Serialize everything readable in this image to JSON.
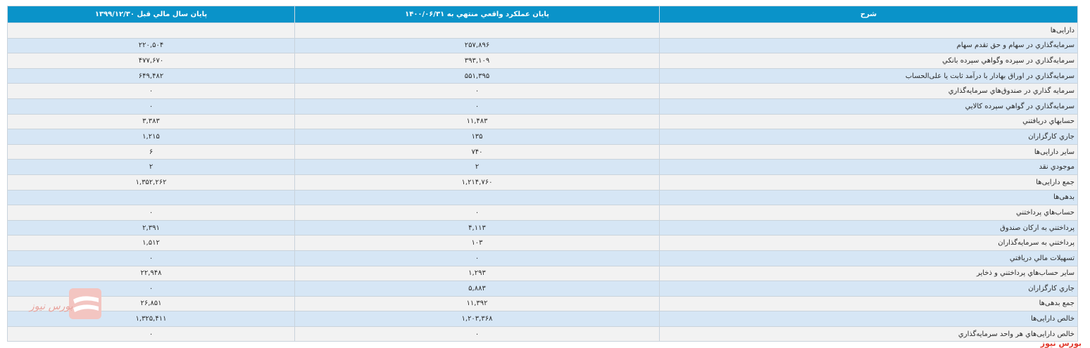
{
  "table": {
    "headers": [
      "شرح",
      "پایان عملکرد واقعي منتهي به ۱۴۰۰/۰۶/۳۱",
      "پایان سال مالي قبل ۱۳۹۹/۱۲/۳۰"
    ],
    "rows": [
      {
        "desc": "دارایی‌ها",
        "current": "",
        "previous": ""
      },
      {
        "desc": "سرمایه‌گذاري در سهام و حق تقدم سهام",
        "current": "۲۵۷,۸۹۶",
        "previous": "۲۲۰,۵۰۴"
      },
      {
        "desc": "سرمایه‌گذاري در سپرده وگواهي سپرده بانكي",
        "current": "۳۹۳,۱۰۹",
        "previous": "۴۷۷,۶۷۰"
      },
      {
        "desc": "سرمایه‌گذاري در اوراق بهادار با درآمد ثابت یا علی‌الحساب",
        "current": "۵۵۱,۳۹۵",
        "previous": "۶۴۹,۴۸۲"
      },
      {
        "desc": "سرمایه گذاري در صندوق‌هاي سرمایه‌گذاري",
        "current": "۰",
        "previous": "۰"
      },
      {
        "desc": "سرمایه‌گذاري در گواهي سپرده كالایي",
        "current": "۰",
        "previous": "۰"
      },
      {
        "desc": "حسابهاي دریافتني",
        "current": "۱۱,۴۸۳",
        "previous": "۳,۳۸۳"
      },
      {
        "desc": "جاري كارگزاران",
        "current": "۱۳۵",
        "previous": "۱,۲۱۵"
      },
      {
        "desc": "سایر دارایی‌ها",
        "current": "۷۴۰",
        "previous": "۶"
      },
      {
        "desc": "موجودي نقد",
        "current": "۲",
        "previous": "۲"
      },
      {
        "desc": "جمع دارایی‌ها",
        "current": "۱,۲۱۴,۷۶۰",
        "previous": "۱,۳۵۲,۲۶۲"
      },
      {
        "desc": "بدهی‌ها",
        "current": "",
        "previous": ""
      },
      {
        "desc": "حساب‌هاي پرداختني",
        "current": "۰",
        "previous": "۰"
      },
      {
        "desc": "پرداختني به اركان صندوق",
        "current": "۴,۱۱۳",
        "previous": "۲,۳۹۱"
      },
      {
        "desc": "پرداختني به سرمایه‌گذاران",
        "current": "۱۰۳",
        "previous": "۱,۵۱۲"
      },
      {
        "desc": "تسهیلات مالي دریافتي",
        "current": "۰",
        "previous": "۰"
      },
      {
        "desc": "سایر حساب‌هاي پرداختني و ذخایر",
        "current": "۱,۲۹۳",
        "previous": "۲۲,۹۴۸"
      },
      {
        "desc": "جاري كارگزاران",
        "current": "۵,۸۸۳",
        "previous": "۰"
      },
      {
        "desc": "جمع بدهی‌ها",
        "current": "۱۱,۳۹۲",
        "previous": "۲۶,۸۵۱"
      },
      {
        "desc": "خالص دارایی‌ها",
        "current": "۱,۲۰۳,۳۶۸",
        "previous": "۱,۳۲۵,۴۱۱"
      },
      {
        "desc": "خالص دارایی‌هاي هر واحد سرمایه‌گذاري",
        "current": "۰",
        "previous": "۰"
      }
    ]
  },
  "branding": {
    "watermark_text": "بورس نیوز",
    "corner_text": "بورس نیوز"
  },
  "colors": {
    "header_bg": "#0a93c9",
    "row_light": "#f2f2f2",
    "row_blue": "#d6e6f5",
    "brand_red": "#e23a2e"
  }
}
